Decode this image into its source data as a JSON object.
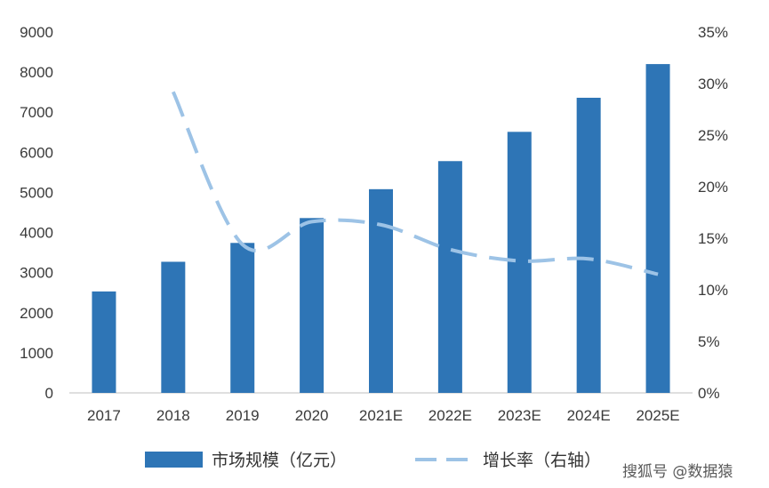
{
  "chart_data": {
    "type": "bar",
    "categories": [
      "2017",
      "2018",
      "2019",
      "2020",
      "2021E",
      "2022E",
      "2023E",
      "2024E",
      "2025E"
    ],
    "series": [
      {
        "name": "市场规模（亿元）",
        "type": "bar",
        "axis": "left",
        "color": "#2E75B6",
        "values": [
          2530,
          3270,
          3740,
          4360,
          5080,
          5780,
          6510,
          7360,
          8200
        ]
      },
      {
        "name": "增长率（右轴）",
        "type": "line",
        "style": "dashed",
        "axis": "right",
        "color": "#9DC3E6",
        "values": [
          null,
          29.2,
          14.4,
          16.6,
          16.3,
          13.9,
          12.8,
          13.0,
          11.5
        ]
      }
    ],
    "y_left": {
      "min": 0,
      "max": 9000,
      "step": 1000,
      "ticks": [
        "0",
        "1000",
        "2000",
        "3000",
        "4000",
        "5000",
        "6000",
        "7000",
        "8000",
        "9000"
      ]
    },
    "y_right": {
      "min": 0,
      "max": 35,
      "step": 5,
      "ticks": [
        "0%",
        "5%",
        "10%",
        "15%",
        "20%",
        "25%",
        "30%",
        "35%"
      ]
    },
    "grid": false,
    "legend": "bottom",
    "watermark": "搜狐号 @数据猿"
  }
}
